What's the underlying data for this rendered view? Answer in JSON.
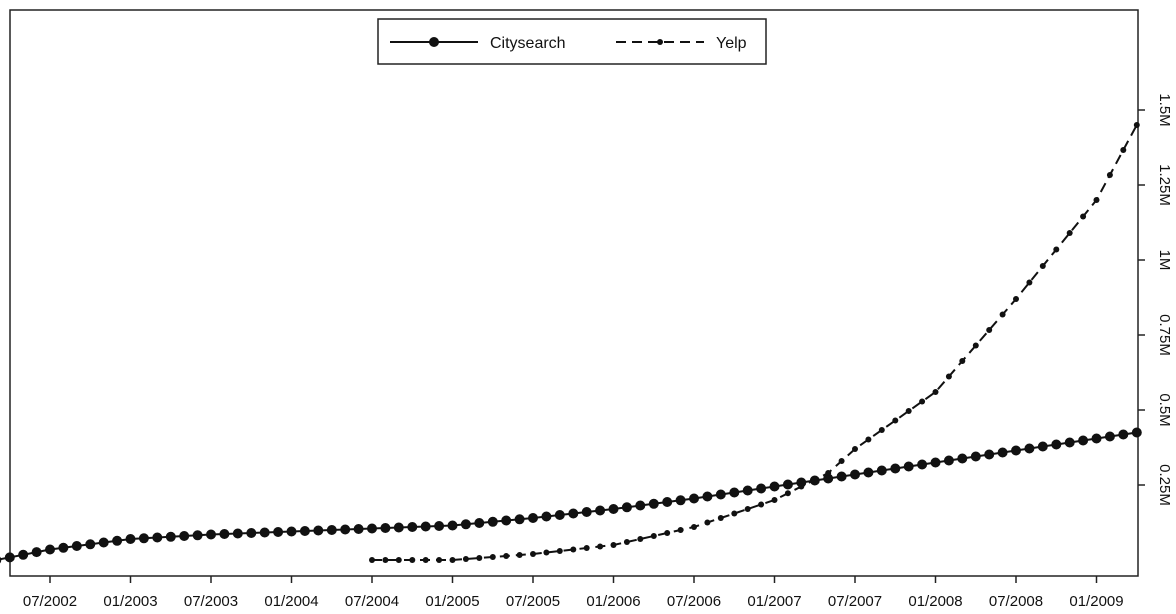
{
  "chart_data": {
    "type": "line",
    "x_axis": {
      "tick_labels": [
        "07/2002",
        "01/2003",
        "07/2003",
        "01/2004",
        "07/2004",
        "01/2005",
        "07/2005",
        "01/2006",
        "07/2006",
        "01/2007",
        "07/2007",
        "01/2008",
        "07/2008",
        "01/2009"
      ]
    },
    "y_axis": {
      "tick_labels": [
        "0.25M",
        "0.5M",
        "0.75M",
        "1M",
        "1.25M",
        "1.5M"
      ],
      "position": "right",
      "ylim": [
        0,
        1.5
      ]
    },
    "legend": {
      "placement": "top-center"
    },
    "series": [
      {
        "name": "Citysearch",
        "style": "solid-large-dots",
        "x": [
          "03/2002",
          "07/2002",
          "01/2003",
          "07/2003",
          "01/2004",
          "07/2004",
          "01/2005",
          "07/2005",
          "01/2006",
          "07/2006",
          "01/2007",
          "07/2007",
          "01/2008",
          "07/2008",
          "01/2009",
          "04/2009"
        ],
        "values": [
          0.0,
          0.035,
          0.07,
          0.085,
          0.095,
          0.105,
          0.115,
          0.14,
          0.17,
          0.205,
          0.245,
          0.285,
          0.325,
          0.365,
          0.405,
          0.425
        ]
      },
      {
        "name": "Yelp",
        "style": "dashed-small-dots",
        "x": [
          "07/2004",
          "01/2005",
          "07/2005",
          "01/2006",
          "07/2006",
          "01/2007",
          "05/2007",
          "07/2007",
          "01/2008",
          "07/2008",
          "01/2009",
          "04/2009"
        ],
        "values": [
          0.0,
          0.0,
          0.02,
          0.05,
          0.11,
          0.2,
          0.29,
          0.37,
          0.56,
          0.87,
          1.2,
          1.45
        ]
      }
    ]
  }
}
